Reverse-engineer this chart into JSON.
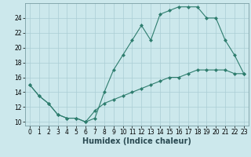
{
  "title": "",
  "xlabel": "Humidex (Indice chaleur)",
  "ylabel": "",
  "background_color": "#cce8ec",
  "line_color": "#2e7d6e",
  "grid_color": "#aacdd4",
  "line1_x": [
    0,
    1,
    2,
    3,
    4,
    5,
    6,
    7,
    8,
    9,
    10,
    11,
    12,
    13,
    14,
    15,
    16,
    17,
    18,
    19,
    20,
    21,
    22,
    23
  ],
  "line1_y": [
    15,
    13.5,
    12.5,
    11,
    10.5,
    10.5,
    10,
    10.5,
    14,
    17,
    19,
    21,
    23,
    21,
    24.5,
    25,
    25.5,
    25.5,
    25.5,
    24,
    24,
    21,
    19,
    16.5
  ],
  "line2_x": [
    0,
    1,
    2,
    3,
    4,
    5,
    6,
    7,
    8,
    9,
    10,
    11,
    12,
    13,
    14,
    15,
    16,
    17,
    18,
    19,
    20,
    21,
    22,
    23
  ],
  "line2_y": [
    15,
    13.5,
    12.5,
    11,
    10.5,
    10.5,
    10,
    11.5,
    12.5,
    13,
    13.5,
    14,
    14.5,
    15,
    15.5,
    16,
    16,
    16.5,
    17,
    17,
    17,
    17,
    16.5,
    16.5
  ],
  "xlim": [
    -0.5,
    23.5
  ],
  "ylim": [
    9.5,
    26
  ],
  "xticks": [
    0,
    1,
    2,
    3,
    4,
    5,
    6,
    7,
    8,
    9,
    10,
    11,
    12,
    13,
    14,
    15,
    16,
    17,
    18,
    19,
    20,
    21,
    22,
    23
  ],
  "yticks": [
    10,
    12,
    14,
    16,
    18,
    20,
    22,
    24
  ],
  "xlabel_fontsize": 7,
  "tick_fontsize": 5.5
}
